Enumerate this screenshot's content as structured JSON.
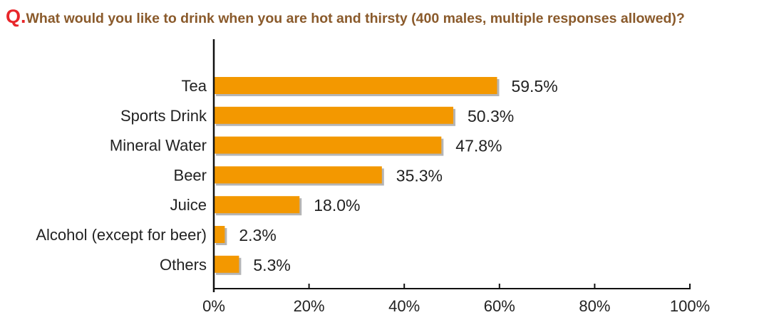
{
  "question": {
    "prefix": "Q.",
    "text": "What would you like to drink when you are hot and thirsty (400 males, multiple responses allowed)?"
  },
  "chart_data": {
    "type": "bar",
    "orientation": "horizontal",
    "categories": [
      "Tea",
      "Sports Drink",
      "Mineral Water",
      "Beer",
      "Juice",
      "Alcohol (except for beer)",
      "Others"
    ],
    "values": [
      59.5,
      50.3,
      47.8,
      35.3,
      18.0,
      2.3,
      5.3
    ],
    "value_labels": [
      "59.5%",
      "50.3%",
      "47.8%",
      "35.3%",
      "18.0%",
      "2.3%",
      "5.3%"
    ],
    "xlim": [
      0,
      100
    ],
    "xticks": [
      0,
      20,
      40,
      60,
      80,
      100
    ],
    "xtick_labels": [
      "0%",
      "20%",
      "40%",
      "60%",
      "80%",
      "100%"
    ],
    "grid": false,
    "legend": false,
    "bar_color": "#f39800",
    "bar_shadow_color": "#b5b5b5"
  }
}
